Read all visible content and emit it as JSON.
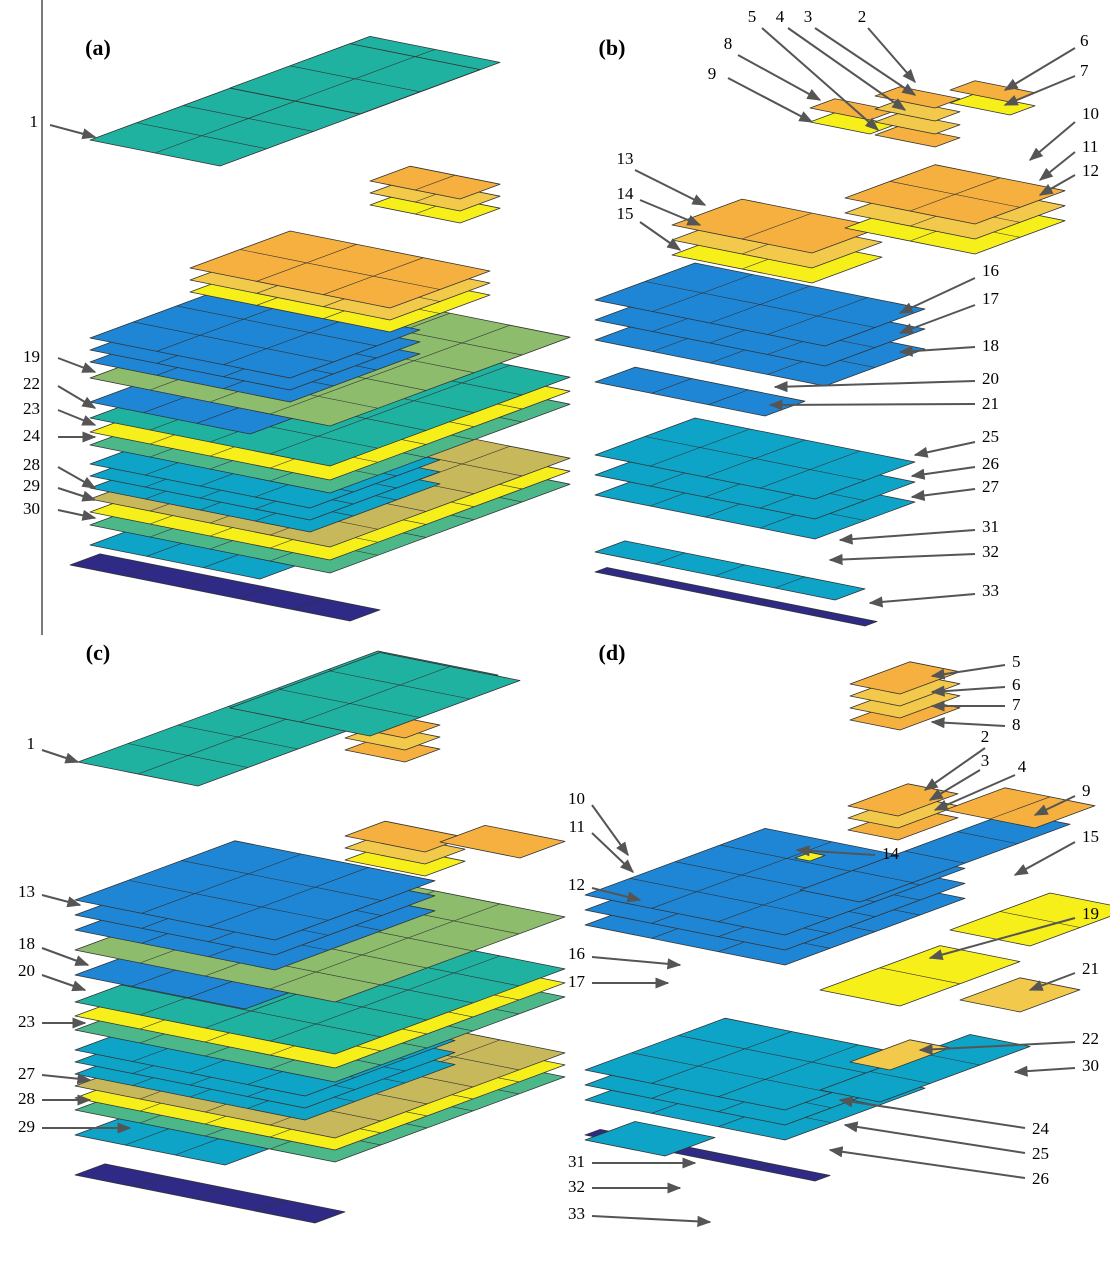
{
  "panels": [
    {
      "title": "(a)",
      "labels": [
        "1",
        "19",
        "22",
        "23",
        "24",
        "28",
        "29",
        "30"
      ]
    },
    {
      "title": "(b)",
      "labels": [
        "5",
        "4",
        "3",
        "2",
        "8",
        "9",
        "6",
        "7",
        "10",
        "11",
        "12",
        "13",
        "14",
        "15",
        "16",
        "17",
        "18",
        "20",
        "21",
        "25",
        "26",
        "27",
        "31",
        "32",
        "33"
      ]
    },
    {
      "title": "(c)",
      "labels": [
        "1",
        "13",
        "18",
        "20",
        "23",
        "27",
        "28",
        "29"
      ]
    },
    {
      "title": "(d)",
      "labels": [
        "5",
        "6",
        "7",
        "8",
        "2",
        "3",
        "4",
        "9",
        "10",
        "11",
        "12",
        "14",
        "15",
        "16",
        "17",
        "19",
        "21",
        "22",
        "30",
        "24",
        "25",
        "26",
        "31",
        "32",
        "33"
      ]
    }
  ]
}
